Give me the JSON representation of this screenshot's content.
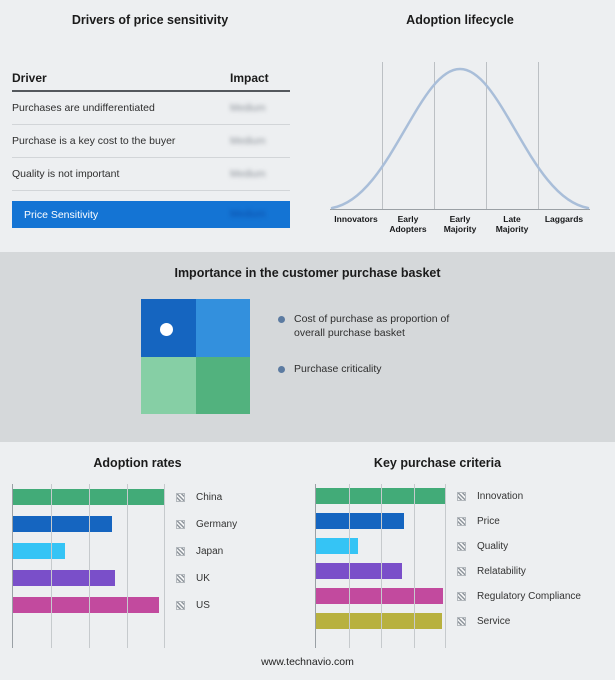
{
  "page": {
    "background": "#edeff1",
    "band_background": "#d5d8da",
    "footer": "www.technavio.com"
  },
  "drivers": {
    "title": "Drivers of price sensitivity",
    "header": {
      "driver": "Driver",
      "impact": "Impact"
    },
    "rows": [
      {
        "driver": "Purchases are undifferentiated",
        "impact": "Medium"
      },
      {
        "driver": "Purchase is a key cost to the buyer",
        "impact": "Medium"
      },
      {
        "driver": "Quality is not important",
        "impact": "Medium"
      }
    ],
    "summary": {
      "driver": "Price Sensitivity",
      "impact": "Medium",
      "background": "#1474d4"
    }
  },
  "lifecycle": {
    "title": "Adoption lifecycle",
    "stages": [
      "Innovators",
      "Early Adopters",
      "Early Majority",
      "Late Majority",
      "Laggards"
    ],
    "curve_color": "#a9bed9"
  },
  "basket": {
    "title": "Importance in the customer purchase basket",
    "quadrants": [
      "#1565c0",
      "#3390dd",
      "#86cfa5",
      "#52b27e"
    ],
    "bullet_color": "#5c7ba1",
    "legend": [
      "Cost of purchase as proportion of overall purchase basket",
      "Purchase criticality"
    ]
  },
  "chart_data": [
    {
      "type": "line",
      "title": "Adoption lifecycle",
      "categories": [
        "Innovators",
        "Early Adopters",
        "Early Majority",
        "Late Majority",
        "Laggards"
      ],
      "values": [
        8,
        55,
        100,
        55,
        8
      ],
      "description": "Bell-shaped adoption curve over five adopter stages",
      "grid": "vertical segment dividers",
      "line_color": "#a9bed9"
    },
    {
      "type": "bar",
      "title": "Adoption rates",
      "orientation": "horizontal",
      "categories": [
        "China",
        "Germany",
        "Japan",
        "UK",
        "US"
      ],
      "values": [
        100,
        65,
        34,
        67,
        96
      ],
      "colors": [
        "#42ab78",
        "#1565c0",
        "#35c4f5",
        "#7a4fc9",
        "#c24a9e"
      ],
      "xlim": [
        0,
        100
      ],
      "unit": "relative (no axis labels shown)",
      "legend_position": "right"
    },
    {
      "type": "bar",
      "title": "Key purchase criteria",
      "orientation": "horizontal",
      "categories": [
        "Innovation",
        "Price",
        "Quality",
        "Relatability",
        "Regulatory Compliance",
        "Service"
      ],
      "values": [
        100,
        68,
        32,
        66,
        98,
        97
      ],
      "colors": [
        "#42ab78",
        "#1565c0",
        "#35c4f5",
        "#7a4fc9",
        "#c24a9e",
        "#b8b13f"
      ],
      "xlim": [
        0,
        100
      ],
      "unit": "relative (no axis labels shown)",
      "legend_position": "right"
    }
  ]
}
